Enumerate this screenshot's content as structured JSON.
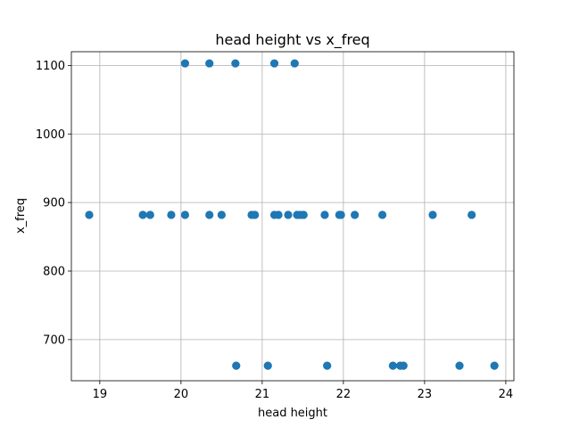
{
  "chart_data": {
    "type": "scatter",
    "title": "head height vs x_freq",
    "xlabel": "head height",
    "ylabel": "x_freq",
    "xlim": [
      18.65,
      24.1
    ],
    "ylim": [
      640,
      1120
    ],
    "xticks": [
      19,
      20,
      21,
      22,
      23,
      24
    ],
    "yticks": [
      700,
      800,
      900,
      1000,
      1100
    ],
    "xtick_labels": [
      "19",
      "20",
      "21",
      "22",
      "23",
      "24"
    ],
    "ytick_labels": [
      "700",
      "800",
      "900",
      "1000",
      "1100"
    ],
    "grid": true,
    "marker_color": "#1f77b4",
    "series": [
      {
        "x": [
          20.05,
          20.35,
          20.67,
          21.15,
          21.4,
          18.87,
          19.53,
          19.62,
          19.88,
          20.05,
          20.35,
          20.5,
          20.87,
          20.91,
          21.15,
          21.2,
          21.32,
          21.43,
          21.47,
          21.51,
          21.77,
          21.95,
          21.97,
          22.14,
          22.48,
          23.1,
          23.58,
          20.68,
          21.07,
          21.8,
          22.61,
          22.7,
          22.74,
          23.43,
          23.86
        ],
        "y": [
          1103,
          1103,
          1103,
          1103,
          1103,
          882,
          882,
          882,
          882,
          882,
          882,
          882,
          882,
          882,
          882,
          882,
          882,
          882,
          882,
          882,
          882,
          882,
          882,
          882,
          882,
          882,
          882,
          662,
          662,
          662,
          662,
          662,
          662,
          662,
          662
        ]
      }
    ]
  }
}
